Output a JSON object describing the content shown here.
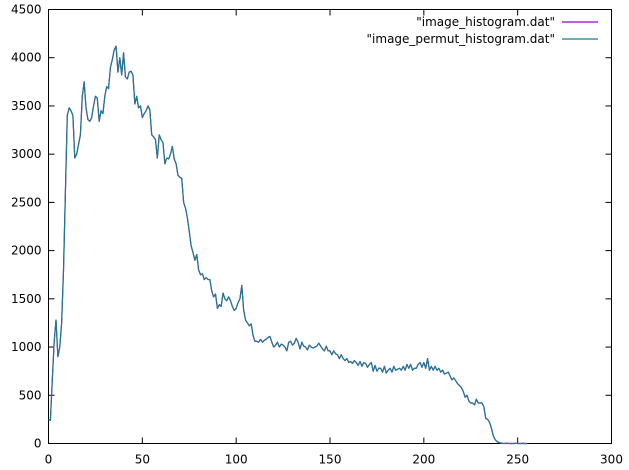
{
  "chart_data": {
    "type": "line",
    "title": "",
    "xlabel": "",
    "ylabel": "",
    "xlim": [
      0,
      300
    ],
    "ylim": [
      0,
      4500
    ],
    "xticks": [
      0,
      50,
      100,
      150,
      200,
      250,
      300
    ],
    "yticks": [
      0,
      500,
      1000,
      1500,
      2000,
      2500,
      3000,
      3500,
      4000,
      4500
    ],
    "xtick_labels": [
      "0",
      "50",
      "100",
      "150",
      "200",
      "250",
      "300"
    ],
    "ytick_labels": [
      "0",
      "500",
      "1000",
      "1500",
      "2000",
      "2500",
      "3000",
      "3500",
      "4000",
      "4500"
    ],
    "grid": false,
    "legend_position": "top-right",
    "x": [
      0,
      1,
      2,
      3,
      4,
      5,
      6,
      7,
      8,
      9,
      10,
      11,
      12,
      13,
      14,
      15,
      16,
      17,
      18,
      19,
      20,
      21,
      22,
      23,
      24,
      25,
      26,
      27,
      28,
      29,
      30,
      31,
      32,
      33,
      34,
      35,
      36,
      37,
      38,
      39,
      40,
      41,
      42,
      43,
      44,
      45,
      46,
      47,
      48,
      49,
      50,
      51,
      52,
      53,
      54,
      55,
      56,
      57,
      58,
      59,
      60,
      61,
      62,
      63,
      64,
      65,
      66,
      67,
      68,
      69,
      70,
      71,
      72,
      73,
      74,
      75,
      76,
      77,
      78,
      79,
      80,
      81,
      82,
      83,
      84,
      85,
      86,
      87,
      88,
      89,
      90,
      91,
      92,
      93,
      94,
      95,
      96,
      97,
      98,
      99,
      100,
      101,
      102,
      103,
      104,
      105,
      106,
      107,
      108,
      109,
      110,
      111,
      112,
      113,
      114,
      115,
      116,
      117,
      118,
      119,
      120,
      121,
      122,
      123,
      124,
      125,
      126,
      127,
      128,
      129,
      130,
      131,
      132,
      133,
      134,
      135,
      136,
      137,
      138,
      139,
      140,
      141,
      142,
      143,
      144,
      145,
      146,
      147,
      148,
      149,
      150,
      151,
      152,
      153,
      154,
      155,
      156,
      157,
      158,
      159,
      160,
      161,
      162,
      163,
      164,
      165,
      166,
      167,
      168,
      169,
      170,
      171,
      172,
      173,
      174,
      175,
      176,
      177,
      178,
      179,
      180,
      181,
      182,
      183,
      184,
      185,
      186,
      187,
      188,
      189,
      190,
      191,
      192,
      193,
      194,
      195,
      196,
      197,
      198,
      199,
      200,
      201,
      202,
      203,
      204,
      205,
      206,
      207,
      208,
      209,
      210,
      211,
      212,
      213,
      214,
      215,
      216,
      217,
      218,
      219,
      220,
      221,
      222,
      223,
      224,
      225,
      226,
      227,
      228,
      229,
      230,
      231,
      232,
      233,
      234,
      235,
      236,
      237,
      238,
      239,
      240,
      241,
      242,
      243,
      244,
      245,
      246,
      247,
      248,
      249,
      250,
      251,
      252,
      253,
      254,
      255
    ],
    "series": [
      {
        "name": "\"image_histogram.dat\"",
        "color": "#9400d3",
        "values": [
          250,
          240,
          650,
          1050,
          1280,
          900,
          1000,
          1250,
          1800,
          2600,
          3400,
          3480,
          3450,
          3400,
          2960,
          3000,
          3100,
          3200,
          3600,
          3750,
          3480,
          3360,
          3340,
          3380,
          3500,
          3600,
          3580,
          3340,
          3450,
          3420,
          3600,
          3700,
          3680,
          3900,
          3980,
          4080,
          4120,
          3850,
          4000,
          3820,
          4050,
          3800,
          3780,
          3850,
          3860,
          3820,
          3520,
          3600,
          3480,
          3500,
          3380,
          3420,
          3450,
          3500,
          3460,
          3200,
          3180,
          3150,
          2960,
          3200,
          3150,
          3120,
          2900,
          2960,
          2950,
          3000,
          3080,
          2950,
          2900,
          2780,
          2760,
          2750,
          2500,
          2440,
          2340,
          2200,
          2050,
          1980,
          1900,
          1960,
          1800,
          1750,
          1760,
          1700,
          1720,
          1700,
          1700,
          1580,
          1520,
          1550,
          1400,
          1440,
          1420,
          1560,
          1500,
          1480,
          1520,
          1480,
          1420,
          1380,
          1400,
          1460,
          1500,
          1640,
          1380,
          1280,
          1250,
          1220,
          1240,
          1120,
          1060,
          1060,
          1050,
          1080,
          1050,
          1070,
          1080,
          1100,
          1110,
          1050,
          1000,
          1020,
          1050,
          1000,
          1030,
          1020,
          1000,
          960,
          1050,
          1060,
          1020,
          1040,
          1090,
          1050,
          980,
          1050,
          1010,
          1000,
          970,
          1020,
          1000,
          990,
          1000,
          1010,
          1040,
          1010,
          980,
          960,
          1010,
          960,
          960,
          920,
          960,
          930,
          920,
          880,
          920,
          880,
          860,
          880,
          840,
          850,
          830,
          860,
          840,
          810,
          850,
          800,
          840,
          830,
          790,
          820,
          840,
          750,
          810,
          750,
          780,
          780,
          740,
          800,
          730,
          760,
          780,
          740,
          800,
          760,
          770,
          780,
          760,
          800,
          760,
          820,
          780,
          820,
          760,
          780,
          780,
          820,
          840,
          790,
          840,
          780,
          880,
          760,
          800,
          760,
          800,
          760,
          780,
          740,
          760,
          720,
          730,
          740,
          700,
          660,
          680,
          650,
          620,
          600,
          580,
          540,
          480,
          500,
          440,
          420,
          420,
          400,
          460,
          420,
          420,
          420,
          380,
          260,
          250,
          220,
          160,
          80,
          40,
          20,
          10,
          5,
          2,
          0,
          3,
          1,
          0,
          0,
          0,
          2,
          0,
          0,
          0,
          1,
          0,
          0
        ]
      },
      {
        "name": "\"image_permut_histogram.dat\"",
        "color": "#1f7a8c",
        "values": [
          250,
          240,
          650,
          1050,
          1280,
          900,
          1000,
          1250,
          1800,
          2600,
          3400,
          3480,
          3450,
          3400,
          2960,
          3000,
          3100,
          3200,
          3600,
          3750,
          3480,
          3360,
          3340,
          3380,
          3500,
          3600,
          3580,
          3340,
          3450,
          3420,
          3600,
          3700,
          3680,
          3900,
          3980,
          4080,
          4120,
          3850,
          4000,
          3820,
          4050,
          3800,
          3780,
          3850,
          3860,
          3820,
          3520,
          3600,
          3480,
          3500,
          3380,
          3420,
          3450,
          3500,
          3460,
          3200,
          3180,
          3150,
          2960,
          3200,
          3150,
          3120,
          2900,
          2960,
          2950,
          3000,
          3080,
          2950,
          2900,
          2780,
          2760,
          2750,
          2500,
          2440,
          2340,
          2200,
          2050,
          1980,
          1900,
          1960,
          1800,
          1750,
          1760,
          1700,
          1720,
          1700,
          1700,
          1580,
          1520,
          1550,
          1400,
          1440,
          1420,
          1560,
          1500,
          1480,
          1520,
          1480,
          1420,
          1380,
          1400,
          1460,
          1500,
          1640,
          1380,
          1280,
          1250,
          1220,
          1240,
          1120,
          1060,
          1060,
          1050,
          1080,
          1050,
          1070,
          1080,
          1100,
          1110,
          1050,
          1000,
          1020,
          1050,
          1000,
          1030,
          1020,
          1000,
          960,
          1050,
          1060,
          1020,
          1040,
          1090,
          1050,
          980,
          1050,
          1010,
          1000,
          970,
          1020,
          1000,
          990,
          1000,
          1010,
          1040,
          1010,
          980,
          960,
          1010,
          960,
          960,
          920,
          960,
          930,
          920,
          880,
          920,
          880,
          860,
          880,
          840,
          850,
          830,
          860,
          840,
          810,
          850,
          800,
          840,
          830,
          790,
          820,
          840,
          750,
          810,
          750,
          780,
          780,
          740,
          800,
          730,
          760,
          780,
          740,
          800,
          760,
          770,
          780,
          760,
          800,
          760,
          820,
          780,
          820,
          760,
          780,
          780,
          820,
          840,
          790,
          840,
          780,
          880,
          760,
          800,
          760,
          800,
          760,
          780,
          740,
          760,
          720,
          730,
          740,
          700,
          660,
          680,
          650,
          620,
          600,
          580,
          540,
          480,
          500,
          440,
          420,
          420,
          400,
          460,
          420,
          420,
          420,
          380,
          260,
          250,
          220,
          160,
          80,
          40,
          20,
          10,
          5,
          2,
          0,
          3,
          1,
          0,
          0,
          0,
          2,
          0,
          0,
          0,
          1,
          0,
          0
        ]
      }
    ]
  }
}
